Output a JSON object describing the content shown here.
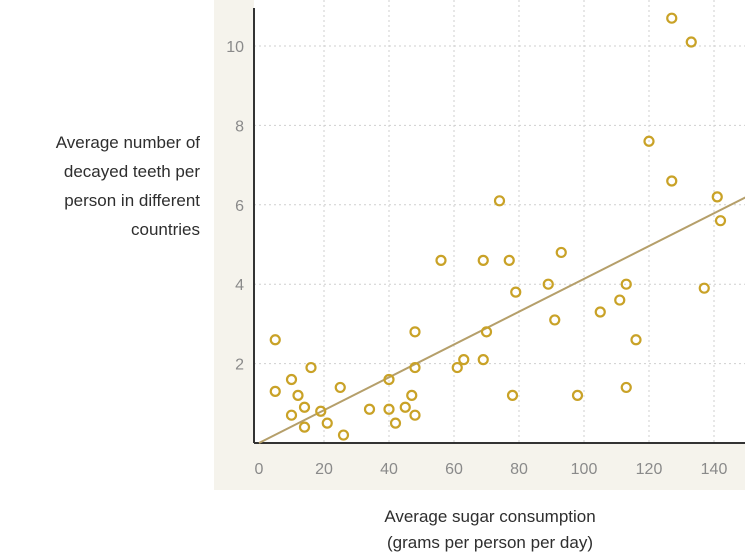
{
  "chart_data": {
    "type": "scatter",
    "title": "",
    "xlabel": "Average sugar consumption\n(grams per person per day)",
    "ylabel": "Average number of\ndecayed teeth per\nperson in different\ncountries",
    "xlim": [
      0,
      150
    ],
    "ylim": [
      0,
      11
    ],
    "xticks": [
      0,
      20,
      40,
      60,
      80,
      100,
      120,
      140
    ],
    "yticks": [
      2,
      4,
      6,
      8,
      10
    ],
    "grid": true,
    "legend": "none",
    "colors": {
      "plot_background": "#f5f3ec",
      "grid": "#cfcfcf",
      "axis": "#333333",
      "point": "#c9a227",
      "trend_line": "#b59f6a"
    },
    "points": [
      {
        "x": 5,
        "y": 2.6
      },
      {
        "x": 5,
        "y": 1.3
      },
      {
        "x": 10,
        "y": 1.6
      },
      {
        "x": 10,
        "y": 0.7
      },
      {
        "x": 12,
        "y": 1.2
      },
      {
        "x": 14,
        "y": 0.4
      },
      {
        "x": 14,
        "y": 0.9
      },
      {
        "x": 16,
        "y": 1.9
      },
      {
        "x": 19,
        "y": 0.8
      },
      {
        "x": 21,
        "y": 0.5
      },
      {
        "x": 25,
        "y": 1.4
      },
      {
        "x": 26,
        "y": 0.2
      },
      {
        "x": 34,
        "y": 0.85
      },
      {
        "x": 40,
        "y": 0.85
      },
      {
        "x": 40,
        "y": 1.6
      },
      {
        "x": 42,
        "y": 0.5
      },
      {
        "x": 45,
        "y": 0.9
      },
      {
        "x": 47,
        "y": 1.2
      },
      {
        "x": 48,
        "y": 0.7
      },
      {
        "x": 48,
        "y": 1.9
      },
      {
        "x": 48,
        "y": 2.8
      },
      {
        "x": 56,
        "y": 4.6
      },
      {
        "x": 61,
        "y": 1.9
      },
      {
        "x": 63,
        "y": 2.1
      },
      {
        "x": 69,
        "y": 2.1
      },
      {
        "x": 69,
        "y": 4.6
      },
      {
        "x": 70,
        "y": 2.8
      },
      {
        "x": 74,
        "y": 6.1
      },
      {
        "x": 77,
        "y": 4.6
      },
      {
        "x": 78,
        "y": 1.2
      },
      {
        "x": 79,
        "y": 3.8
      },
      {
        "x": 89,
        "y": 4.0
      },
      {
        "x": 91,
        "y": 3.1
      },
      {
        "x": 93,
        "y": 4.8
      },
      {
        "x": 98,
        "y": 1.2
      },
      {
        "x": 105,
        "y": 3.3
      },
      {
        "x": 111,
        "y": 3.6
      },
      {
        "x": 113,
        "y": 4.0
      },
      {
        "x": 113,
        "y": 1.4
      },
      {
        "x": 116,
        "y": 2.6
      },
      {
        "x": 120,
        "y": 7.6
      },
      {
        "x": 127,
        "y": 10.7
      },
      {
        "x": 127,
        "y": 6.6
      },
      {
        "x": 133,
        "y": 10.1
      },
      {
        "x": 137,
        "y": 3.9
      },
      {
        "x": 141,
        "y": 6.2
      },
      {
        "x": 142,
        "y": 5.6
      }
    ],
    "trend_line": {
      "x": [
        0,
        150
      ],
      "y": [
        0,
        6.2
      ]
    }
  }
}
